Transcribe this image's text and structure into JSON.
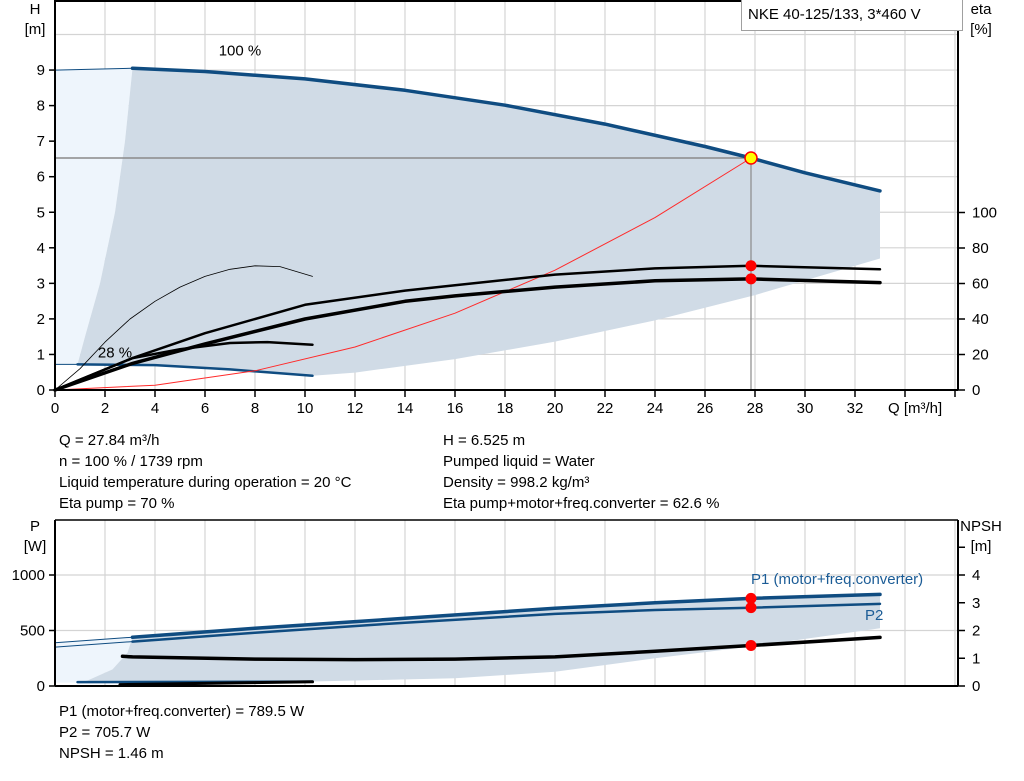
{
  "title": "NKE 40-125/133, 3*460 V",
  "colors": {
    "curve_blue": "#0f4c81",
    "area": "#d0dbe6",
    "area_light": "#eef5fc",
    "system_curve": "#ff2a2a",
    "duty_point": "#ffff00",
    "marker": "#ff0000",
    "grid": "#d4d4d4"
  },
  "info_top": {
    "left": [
      "Q = 27.84 m³/h",
      "n = 100 % / 1739 rpm",
      "Liquid temperature during operation = 20 °C",
      "Eta pump = 70 %"
    ],
    "right": [
      "H = 6.525 m",
      "Pumped liquid = Water",
      "Density = 998.2 kg/m³",
      "Eta pump+motor+freq.converter = 62.6 %"
    ]
  },
  "info_bottom": [
    "P1 (motor+freq.converter) = 789.5 W",
    "P2 = 705.7 W",
    "NPSH = 1.46 m"
  ],
  "chart_data": [
    {
      "type": "line",
      "x_axis": {
        "label": "Q [m³/h]",
        "ticks": [
          "0",
          "2",
          "4",
          "6",
          "8",
          "10",
          "12",
          "14",
          "16",
          "18",
          "20",
          "22",
          "24",
          "26",
          "28",
          "30",
          "32"
        ],
        "range": [
          0,
          36
        ]
      },
      "y_left": {
        "label": "H",
        "unit": "[m]",
        "ticks": [
          "0",
          "1",
          "2",
          "3",
          "4",
          "5",
          "6",
          "7",
          "8",
          "9"
        ],
        "range": [
          0,
          11
        ]
      },
      "y_right": {
        "label": "eta",
        "unit": "[%]",
        "ticks": [
          "0",
          "20",
          "40",
          "60",
          "80",
          "100"
        ],
        "range": [
          0,
          220
        ]
      },
      "grid": true,
      "areas": [
        {
          "id": "light",
          "color": "#eef5fc",
          "axis": "left",
          "points": [
            [
              0,
              0.72
            ],
            [
              0,
              9.0
            ],
            [
              3.1,
              9.05
            ],
            [
              2.8,
              7
            ],
            [
              2.4,
              5
            ],
            [
              1.8,
              3
            ],
            [
              1.2,
              1.5
            ],
            [
              0.9,
              0.72
            ]
          ]
        },
        {
          "id": "operating",
          "color": "#d0dbe6",
          "axis": "left",
          "points": [
            [
              3.1,
              9.05
            ],
            [
              6,
              8.96
            ],
            [
              10,
              8.75
            ],
            [
              14,
              8.43
            ],
            [
              18,
              8.01
            ],
            [
              22,
              7.48
            ],
            [
              26,
              6.85
            ],
            [
              27.84,
              6.525
            ],
            [
              30,
              6.11
            ],
            [
              33,
              5.6
            ],
            [
              33,
              3.7
            ],
            [
              28,
              2.67
            ],
            [
              24,
              1.96
            ],
            [
              20,
              1.36
            ],
            [
              16,
              0.87
            ],
            [
              12,
              0.49
            ],
            [
              10.3,
              0.4
            ],
            [
              7,
              0.58
            ],
            [
              4,
              0.7
            ],
            [
              0.9,
              0.72
            ],
            [
              1.2,
              1.5
            ],
            [
              1.8,
              3
            ],
            [
              2.4,
              5
            ],
            [
              2.8,
              7
            ]
          ]
        }
      ],
      "series": [
        {
          "id": "h-100-ext",
          "axis": "left",
          "color": "#0f4c81",
          "width": 1,
          "points": [
            [
              0,
              9.0
            ],
            [
              3.1,
              9.05
            ]
          ]
        },
        {
          "id": "h-100",
          "label": "100 %",
          "axis": "left",
          "color": "#0f4c81",
          "width": 3.5,
          "points": [
            [
              3.1,
              9.05
            ],
            [
              6,
              8.96
            ],
            [
              10,
              8.75
            ],
            [
              14,
              8.43
            ],
            [
              18,
              8.01
            ],
            [
              22,
              7.48
            ],
            [
              26,
              6.85
            ],
            [
              27.84,
              6.525
            ],
            [
              30,
              6.11
            ],
            [
              33,
              5.6
            ]
          ]
        },
        {
          "id": "h-28-ext",
          "axis": "left",
          "color": "#0f4c81",
          "width": 1,
          "points": [
            [
              0,
              0.72
            ],
            [
              0.9,
              0.72
            ]
          ]
        },
        {
          "id": "h-28",
          "label": "28 %",
          "axis": "left",
          "color": "#0f4c81",
          "width": 2.5,
          "points": [
            [
              0.9,
              0.72
            ],
            [
              4,
              0.7
            ],
            [
              7,
              0.58
            ],
            [
              10.3,
              0.4
            ]
          ]
        },
        {
          "id": "system-curve",
          "axis": "left",
          "color": "#ff2a2a",
          "width": 1,
          "points": [
            [
              0,
              0
            ],
            [
              4,
              0.135
            ],
            [
              8,
              0.539
            ],
            [
              12,
              1.21
            ],
            [
              16,
              2.16
            ],
            [
              20,
              3.37
            ],
            [
              24,
              4.85
            ],
            [
              27.84,
              6.525
            ]
          ]
        },
        {
          "id": "eta-28-thin",
          "axis": "right",
          "color": "#000000",
          "width": 0.8,
          "points": [
            [
              0,
              0
            ],
            [
              1,
              12
            ],
            [
              2,
              27
            ],
            [
              3,
              40
            ],
            [
              4,
              50
            ],
            [
              5,
              58
            ],
            [
              6,
              64
            ],
            [
              7,
              68
            ],
            [
              8,
              70
            ],
            [
              9,
              69.5
            ],
            [
              10.3,
              64
            ]
          ]
        },
        {
          "id": "eta-28",
          "axis": "right",
          "color": "#000000",
          "width": 2.5,
          "points": [
            [
              0,
              0
            ],
            [
              3.1,
              18
            ],
            [
              5,
              23
            ],
            [
              7,
              26.5
            ],
            [
              8.5,
              27
            ],
            [
              10.3,
              25.5
            ]
          ]
        },
        {
          "id": "eta-pump",
          "axis": "right",
          "color": "#000000",
          "width": 2.5,
          "points": [
            [
              0,
              0
            ],
            [
              3.1,
              18
            ],
            [
              6,
              32
            ],
            [
              10,
              48
            ],
            [
              14,
              56
            ],
            [
              16,
              59
            ],
            [
              20,
              65
            ],
            [
              24,
              68.5
            ],
            [
              27.84,
              70
            ],
            [
              33,
              68
            ]
          ]
        },
        {
          "id": "eta-total",
          "axis": "right",
          "color": "#000000",
          "width": 3.5,
          "points": [
            [
              0,
              0
            ],
            [
              3.1,
              15
            ],
            [
              6,
              26
            ],
            [
              10,
              40
            ],
            [
              14,
              50
            ],
            [
              16,
              53
            ],
            [
              20,
              58
            ],
            [
              24,
              61.5
            ],
            [
              27.84,
              62.6
            ],
            [
              33,
              60.5
            ]
          ]
        }
      ],
      "duty_point": {
        "Q": 27.84,
        "H": 6.525
      },
      "markers": [
        {
          "axis": "right",
          "Q": 27.84,
          "value": 70
        },
        {
          "axis": "right",
          "Q": 27.84,
          "value": 62.6
        }
      ],
      "annotations": [
        {
          "text": "100 %",
          "Q": 7.4,
          "H": 9.55
        },
        {
          "text": "28 %",
          "Q": 2.4,
          "H": 1.05
        }
      ]
    },
    {
      "type": "line",
      "x_axis": {
        "range": [
          0,
          36
        ]
      },
      "y_left": {
        "label": "P",
        "unit": "[W]",
        "ticks": [
          "0",
          "500",
          "1000"
        ],
        "range": [
          0,
          1500
        ]
      },
      "y_right": {
        "label": "NPSH",
        "unit": "[m]",
        "ticks": [
          "0",
          "1",
          "2",
          "3",
          "4"
        ],
        "range": [
          0,
          6
        ]
      },
      "grid": true,
      "areas": [
        {
          "id": "light",
          "color": "#eef5fc",
          "axis": "left",
          "points": [
            [
              0,
              30
            ],
            [
              0,
              390
            ],
            [
              3.1,
              440
            ],
            [
              2.9,
              300
            ],
            [
              2.3,
              150
            ],
            [
              1.3,
              50
            ],
            [
              0.9,
              30
            ]
          ]
        },
        {
          "id": "operating",
          "color": "#d0dbe6",
          "axis": "left",
          "points": [
            [
              3.1,
              440
            ],
            [
              8,
              520
            ],
            [
              14,
              610
            ],
            [
              20,
              700
            ],
            [
              24,
              750
            ],
            [
              27.84,
              789.5
            ],
            [
              33,
              825
            ],
            [
              33,
              520
            ],
            [
              28,
              360
            ],
            [
              24,
              250
            ],
            [
              20,
              128
            ],
            [
              16,
              70
            ],
            [
              10.3,
              40
            ],
            [
              0.9,
              30
            ],
            [
              1.3,
              50
            ],
            [
              2.3,
              150
            ],
            [
              2.9,
              300
            ]
          ]
        }
      ],
      "series": [
        {
          "id": "p1-ext",
          "axis": "left",
          "color": "#0f4c81",
          "width": 1,
          "points": [
            [
              0,
              390
            ],
            [
              3.1,
              440
            ]
          ]
        },
        {
          "id": "p2-ext",
          "axis": "left",
          "color": "#0f4c81",
          "width": 1,
          "points": [
            [
              0,
              350
            ],
            [
              3.1,
              400
            ]
          ]
        },
        {
          "id": "p1",
          "label": "P1 (motor+freq.converter)",
          "axis": "left",
          "color": "#0f4c81",
          "width": 3.5,
          "points": [
            [
              3.1,
              440
            ],
            [
              8,
              520
            ],
            [
              14,
              610
            ],
            [
              20,
              700
            ],
            [
              24,
              750
            ],
            [
              27.84,
              789.5
            ],
            [
              33,
              825
            ]
          ]
        },
        {
          "id": "p2",
          "label": "P2",
          "axis": "left",
          "color": "#0f4c81",
          "width": 2.5,
          "points": [
            [
              3.1,
              400
            ],
            [
              8,
              480
            ],
            [
              14,
              570
            ],
            [
              20,
              650
            ],
            [
              24,
              685
            ],
            [
              27.84,
              705.7
            ],
            [
              33,
              740
            ]
          ]
        },
        {
          "id": "p1-28",
          "axis": "left",
          "color": "#0f4c81",
          "width": 2.5,
          "points": [
            [
              0.9,
              35
            ],
            [
              10.3,
              40
            ]
          ]
        },
        {
          "id": "npsh-28",
          "axis": "right",
          "color": "#000000",
          "width": 3,
          "points": [
            [
              2.6,
              0.05
            ],
            [
              10.3,
              0.15
            ]
          ]
        },
        {
          "id": "npsh",
          "axis": "right",
          "color": "#000000",
          "width": 3.5,
          "points": [
            [
              2.7,
              1.07
            ],
            [
              3.1,
              1.05
            ],
            [
              8,
              0.97
            ],
            [
              12,
              0.95
            ],
            [
              16,
              0.97
            ],
            [
              20,
              1.05
            ],
            [
              24,
              1.25
            ],
            [
              27.84,
              1.46
            ],
            [
              33,
              1.75
            ]
          ]
        }
      ],
      "markers": [
        {
          "axis": "left",
          "Q": 27.84,
          "value": 789.5
        },
        {
          "axis": "left",
          "Q": 27.84,
          "value": 705.7
        },
        {
          "axis": "right",
          "Q": 27.84,
          "value": 1.46
        }
      ]
    }
  ]
}
